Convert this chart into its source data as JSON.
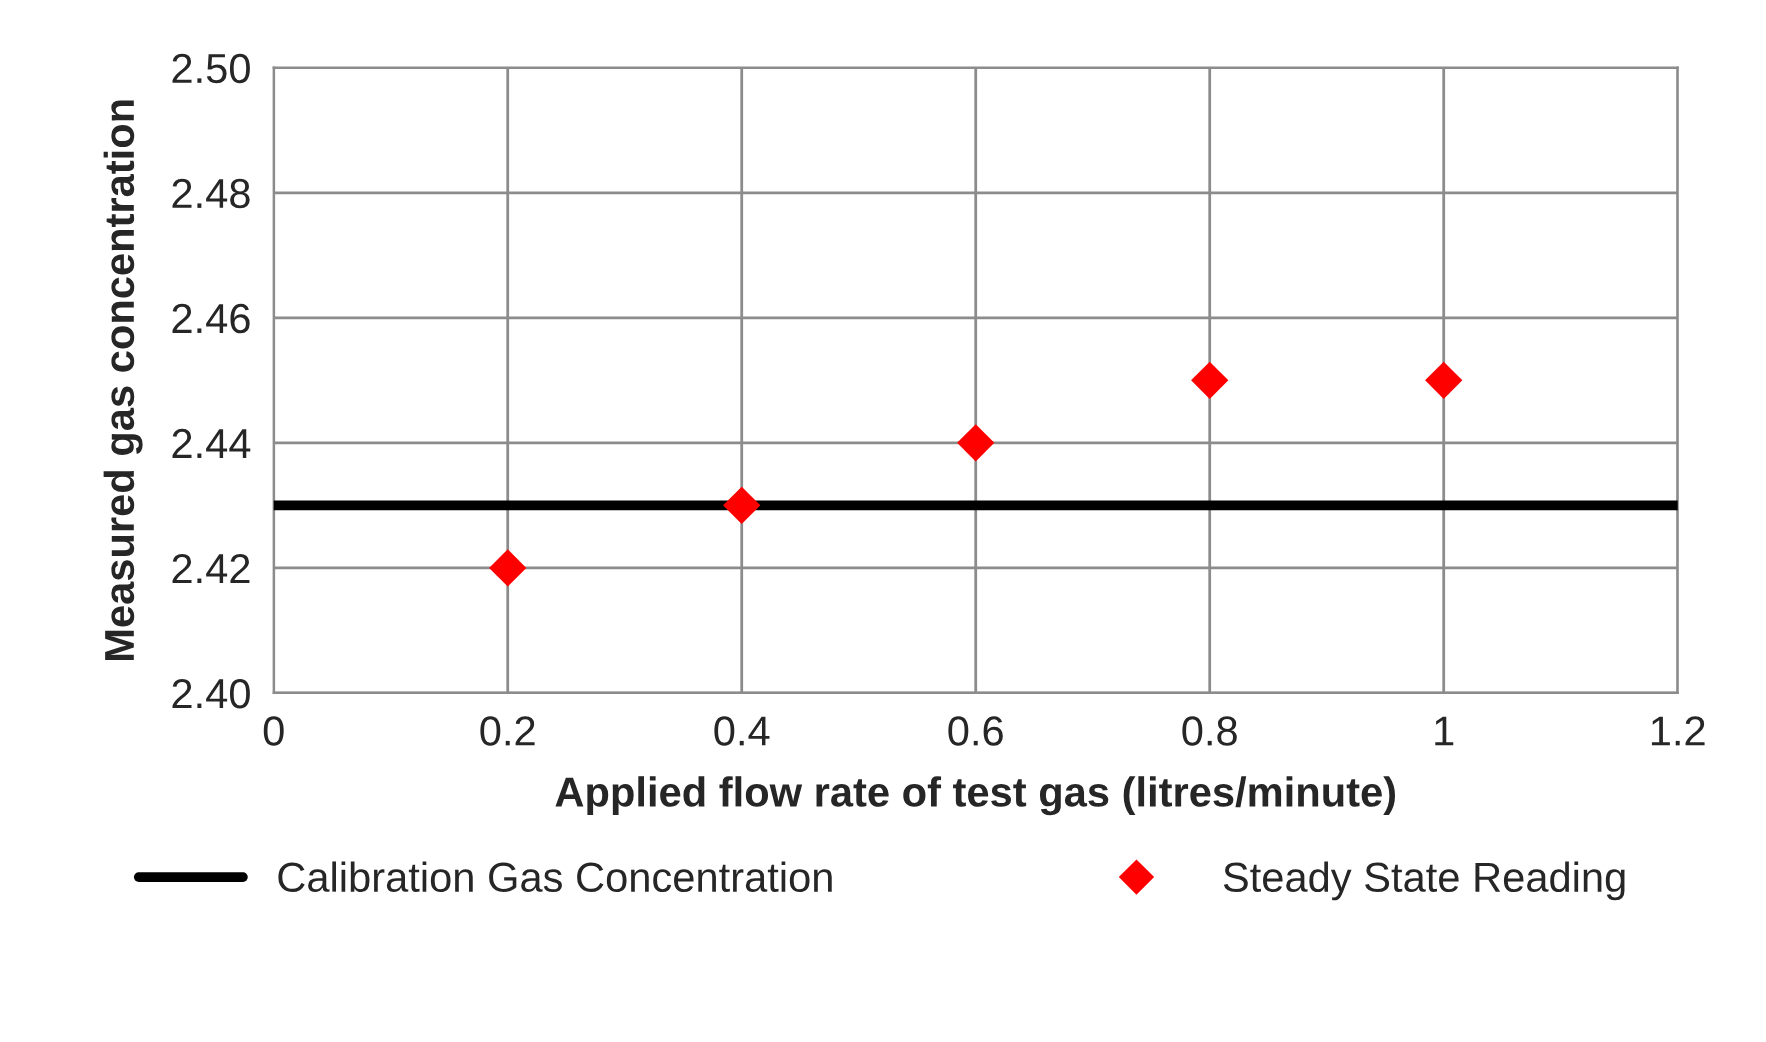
{
  "chart_data": {
    "type": "scatter",
    "xlabel": "Applied flow rate of test gas (litres/minute)",
    "ylabel": "Measured gas concentration",
    "series": [
      {
        "name": "Calibration Gas Concentration",
        "type": "line",
        "color": "#000000",
        "x": [
          0,
          1.2
        ],
        "values": [
          2.43,
          2.43
        ],
        "marker": "none",
        "line_style": "solid"
      },
      {
        "name": "Steady State Reading",
        "color": "#ff0000",
        "x": [
          0.2,
          0.4,
          0.6,
          0.8,
          1.0
        ],
        "values": [
          2.42,
          2.43,
          2.44,
          2.45,
          2.45
        ],
        "marker": "diamond"
      }
    ],
    "xlim": [
      0,
      1.2
    ],
    "xticks": [
      0,
      0.2,
      0.4,
      0.6,
      0.8,
      {
        "value": 1.0,
        "label": "1"
      },
      1.2
    ],
    "ylim": [
      2.4,
      2.5
    ],
    "yticks": [
      {
        "value": 2.4,
        "label": "2.40"
      },
      2.42,
      2.44,
      2.46,
      2.48,
      {
        "value": 2.5,
        "label": "2.50"
      }
    ],
    "grid": true,
    "legend": "bottom"
  }
}
